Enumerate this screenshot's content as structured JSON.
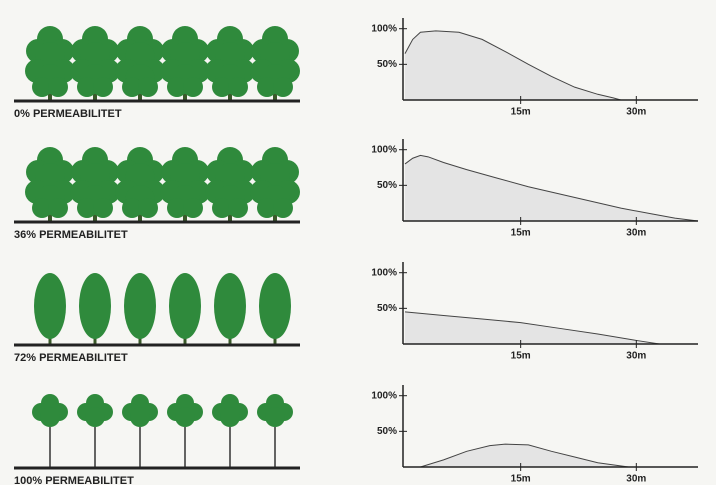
{
  "chart_data": [
    {
      "type": "area",
      "title": "0% PERMEABILITET",
      "color": "#e4e4e4",
      "line_color": "#444444",
      "x": [
        0,
        0.5,
        1,
        2,
        4,
        7,
        10,
        13,
        16,
        19,
        22,
        25,
        27,
        28
      ],
      "values": [
        65,
        75,
        85,
        95,
        97,
        95,
        85,
        68,
        50,
        33,
        18,
        8,
        3,
        0
      ],
      "xlim": [
        0,
        38
      ],
      "ylim": [
        0,
        115
      ],
      "xticks": [
        {
          "value": 15,
          "label": "15m"
        },
        {
          "value": 30,
          "label": "30m"
        }
      ],
      "yticks": [
        {
          "value": 50,
          "label": "50%"
        },
        {
          "value": 100,
          "label": "100%"
        }
      ]
    },
    {
      "type": "area",
      "title": "36% PERMEABILITET",
      "color": "#e4e4e4",
      "line_color": "#444444",
      "x": [
        0,
        1,
        2,
        3,
        5,
        8,
        12,
        16,
        20,
        24,
        28,
        32,
        35,
        38
      ],
      "values": [
        80,
        88,
        92,
        90,
        82,
        72,
        60,
        48,
        38,
        28,
        18,
        10,
        4,
        0
      ],
      "xlim": [
        0,
        38
      ],
      "ylim": [
        0,
        115
      ],
      "xticks": [
        {
          "value": 15,
          "label": "15m"
        },
        {
          "value": 30,
          "label": "30m"
        }
      ],
      "yticks": [
        {
          "value": 50,
          "label": "50%"
        },
        {
          "value": 100,
          "label": "100%"
        }
      ]
    },
    {
      "type": "area",
      "title": "72% PERMEABILITET",
      "color": "#e4e4e4",
      "line_color": "#444444",
      "x": [
        0,
        5,
        10,
        15,
        20,
        25,
        30,
        33
      ],
      "values": [
        45,
        40,
        35,
        30,
        22,
        14,
        5,
        0
      ],
      "xlim": [
        0,
        38
      ],
      "ylim": [
        0,
        115
      ],
      "xticks": [
        {
          "value": 15,
          "label": "15m"
        },
        {
          "value": 30,
          "label": "30m"
        }
      ],
      "yticks": [
        {
          "value": 50,
          "label": "50%"
        },
        {
          "value": 100,
          "label": "100%"
        }
      ]
    },
    {
      "type": "area",
      "title": "100% PERMEABILITET",
      "color": "#e4e4e4",
      "line_color": "#444444",
      "x": [
        0,
        2,
        5,
        8,
        11,
        13,
        16,
        19,
        22,
        25,
        29
      ],
      "values": [
        0,
        0,
        10,
        22,
        30,
        32,
        31,
        22,
        14,
        6,
        0
      ],
      "xlim": [
        0,
        38
      ],
      "ylim": [
        0,
        115
      ],
      "xticks": [
        {
          "value": 15,
          "label": "15m"
        },
        {
          "value": 30,
          "label": "30m"
        }
      ],
      "yticks": [
        {
          "value": 50,
          "label": "50%"
        },
        {
          "value": 100,
          "label": "100%"
        }
      ]
    }
  ]
}
